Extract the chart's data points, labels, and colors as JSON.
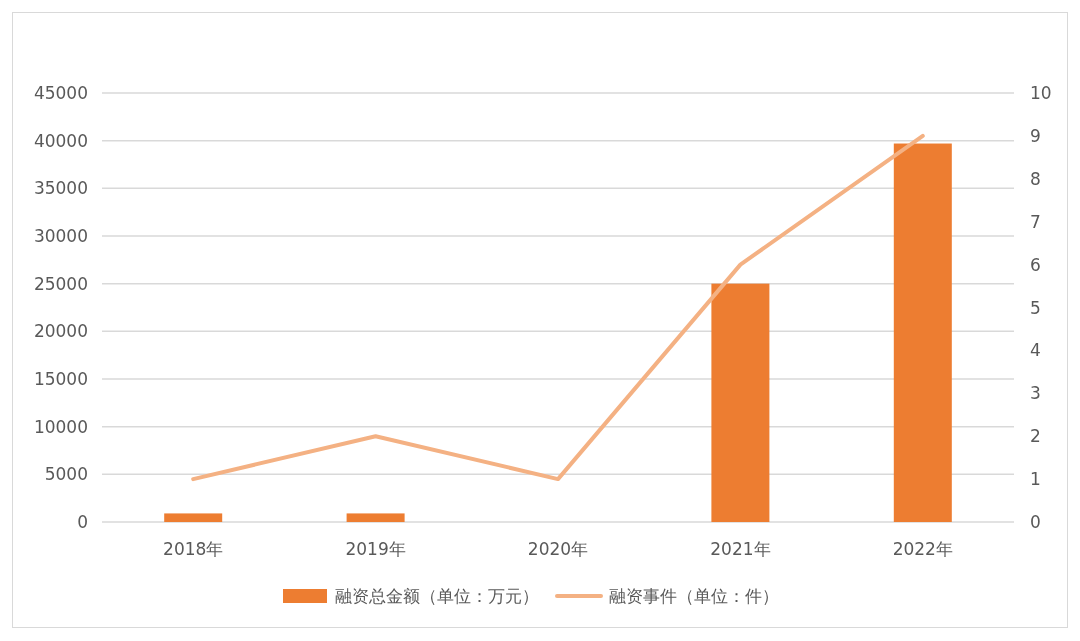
{
  "chart_data": {
    "type": "bar",
    "categories": [
      "2018年",
      "2019年",
      "2020年",
      "2021年",
      "2022年"
    ],
    "series": [
      {
        "name": "融资总金额（单位：万元）",
        "color": "#ed7d31",
        "values": [
          900,
          900,
          0,
          25000,
          39700
        ]
      },
      {
        "name": "融资事件（单位：件）",
        "type": "line",
        "axis": "y2",
        "color": "#f4b183",
        "values": [
          1,
          2,
          1,
          6,
          9
        ]
      }
    ],
    "ylim": [
      0,
      45000
    ],
    "yticks": [
      0,
      5000,
      10000,
      15000,
      20000,
      25000,
      30000,
      35000,
      40000,
      45000
    ],
    "y2lim": [
      0,
      10
    ],
    "y2ticks": [
      0,
      1,
      2,
      3,
      4,
      5,
      6,
      7,
      8,
      9,
      10
    ],
    "grid": "y",
    "legend": "bottom",
    "marker": "none",
    "line_style": "solid"
  }
}
